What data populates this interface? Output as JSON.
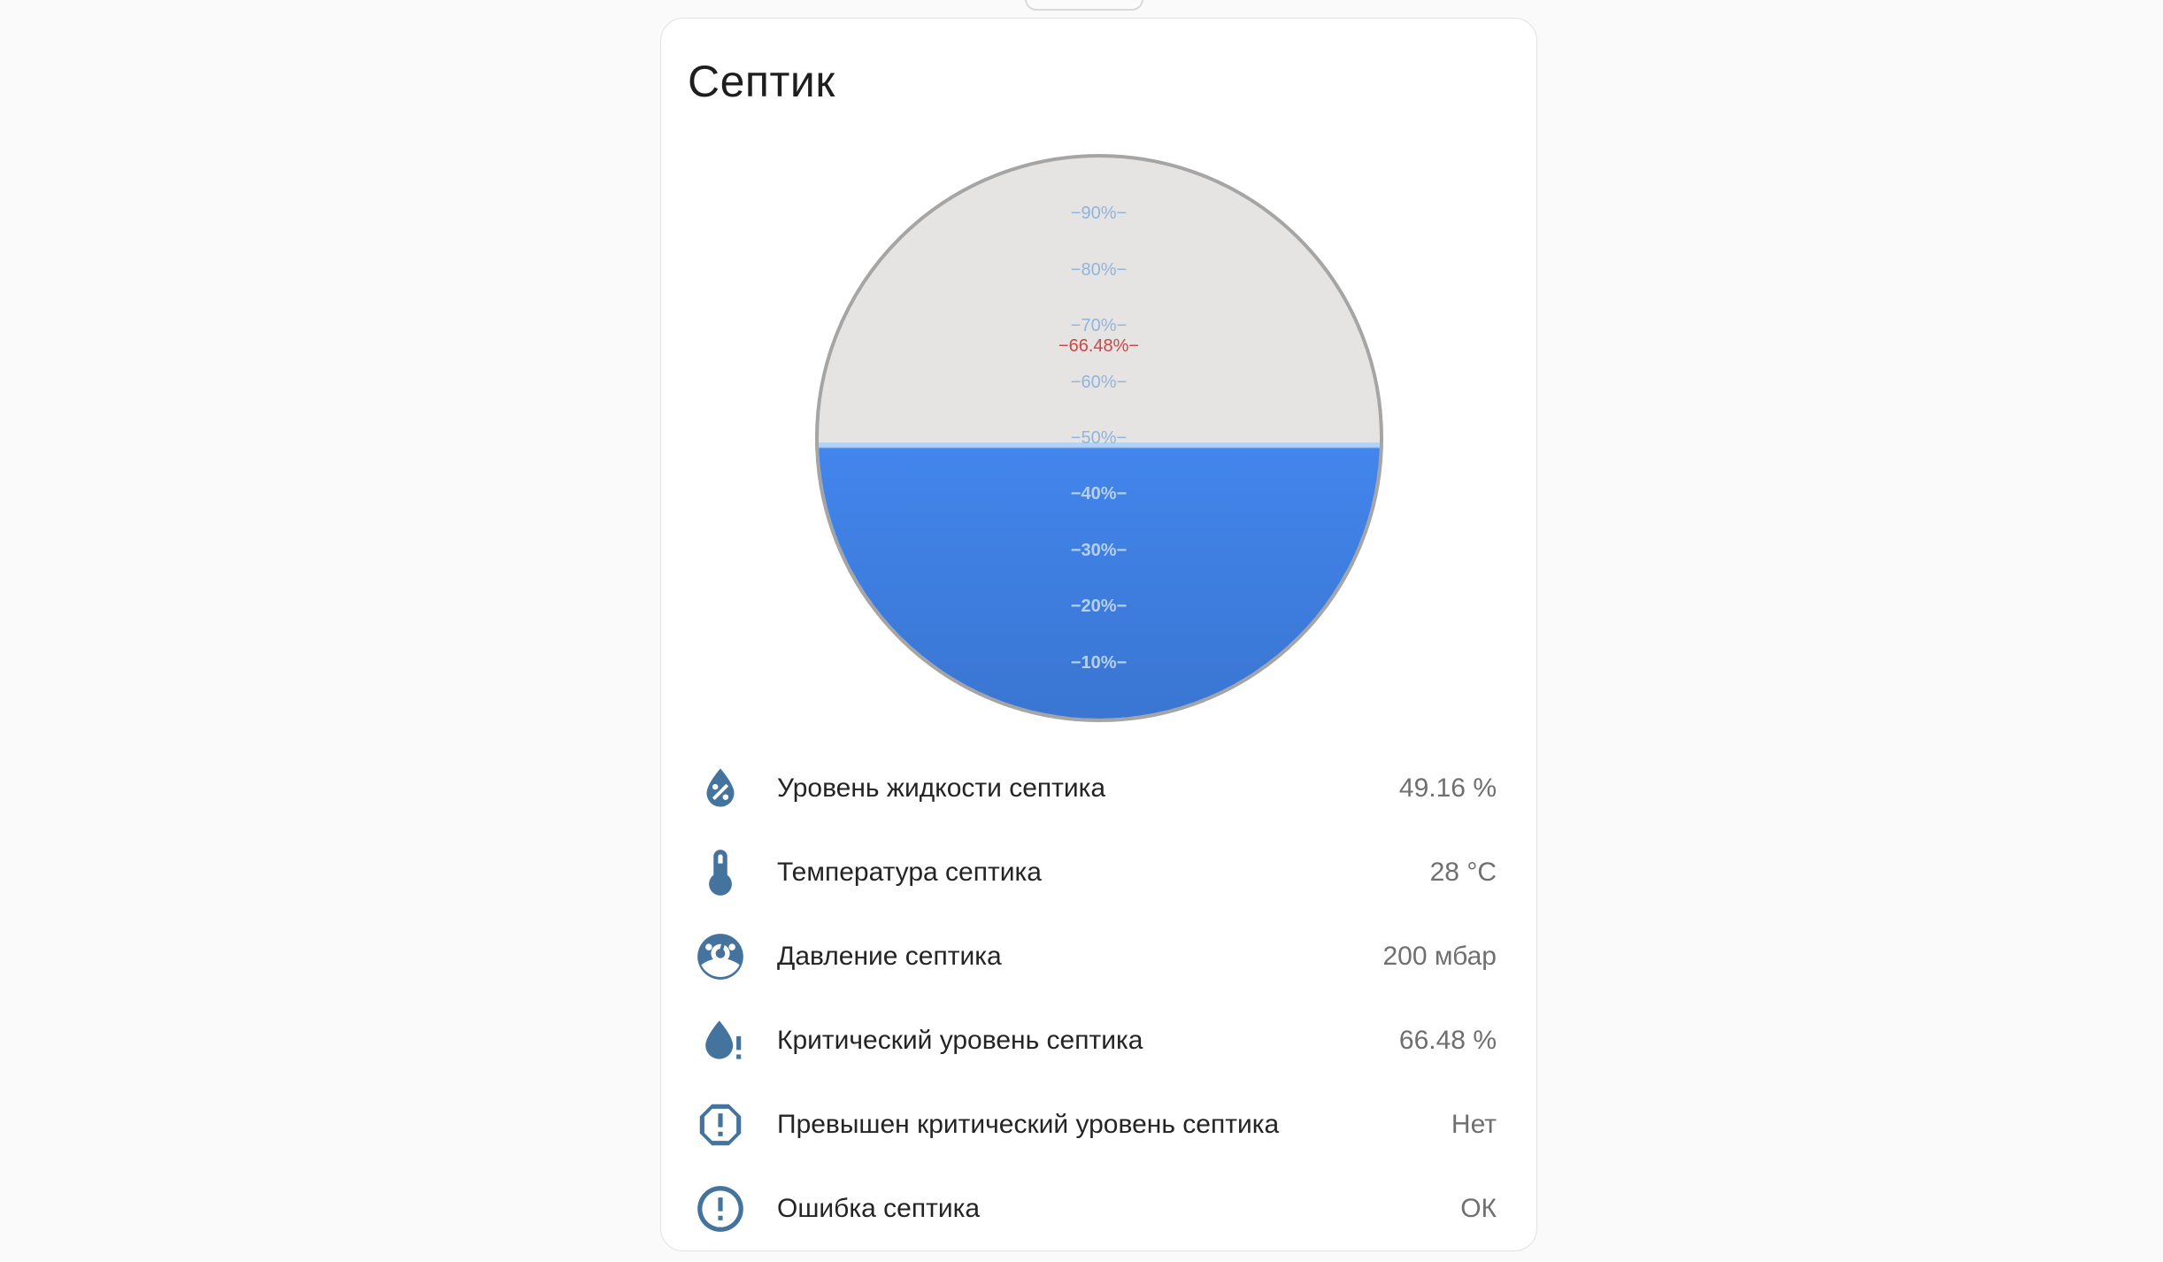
{
  "card": {
    "title": "Септик"
  },
  "gauge": {
    "fill_percent": 49.16,
    "critical_percent": 66.48,
    "critical_label": "−66.48%−",
    "ticks": [
      {
        "percent": 90,
        "label": "−90%−"
      },
      {
        "percent": 80,
        "label": "−80%−"
      },
      {
        "percent": 70,
        "label": "−70%−"
      },
      {
        "percent": 60,
        "label": "−60%−"
      },
      {
        "percent": 50,
        "label": "−50%−"
      },
      {
        "percent": 40,
        "label": "−40%−"
      },
      {
        "percent": 30,
        "label": "−30%−"
      },
      {
        "percent": 20,
        "label": "−20%−"
      },
      {
        "percent": 10,
        "label": "−10%−"
      }
    ]
  },
  "rows": [
    {
      "icon": "water-percent-icon",
      "label": "Уровень жидкости септика",
      "value": "49.16 %"
    },
    {
      "icon": "thermometer-icon",
      "label": "Температура септика",
      "value": "28 °C"
    },
    {
      "icon": "gauge-icon",
      "label": "Давление септика",
      "value": "200 мбар"
    },
    {
      "icon": "water-alert-icon",
      "label": "Критический уровень септика",
      "value": "66.48 %"
    },
    {
      "icon": "alert-octagon-icon",
      "label": "Превышен критический уровень септика",
      "value": "Нет"
    },
    {
      "icon": "alert-circle-icon",
      "label": "Ошибка септика",
      "value": "ОК"
    }
  ],
  "colors": {
    "page_bg": "#fafafa",
    "card_bg": "#ffffff",
    "card_border": "#e2e2e2",
    "title_text": "#1e1e1e",
    "label_text": "#242424",
    "value_text": "#6f6f6f",
    "icon_accent": "#44739e",
    "tank_empty": "#e5e4e2",
    "tank_border": "#a5a5a5",
    "water_top": "#4285ec",
    "water_bottom": "#3a76d2",
    "water_surface_band": "#b4d2f4",
    "tick_above_water": "#91b4dd",
    "tick_below_water": "#b5d0f2",
    "critical_red": "#c94848"
  }
}
